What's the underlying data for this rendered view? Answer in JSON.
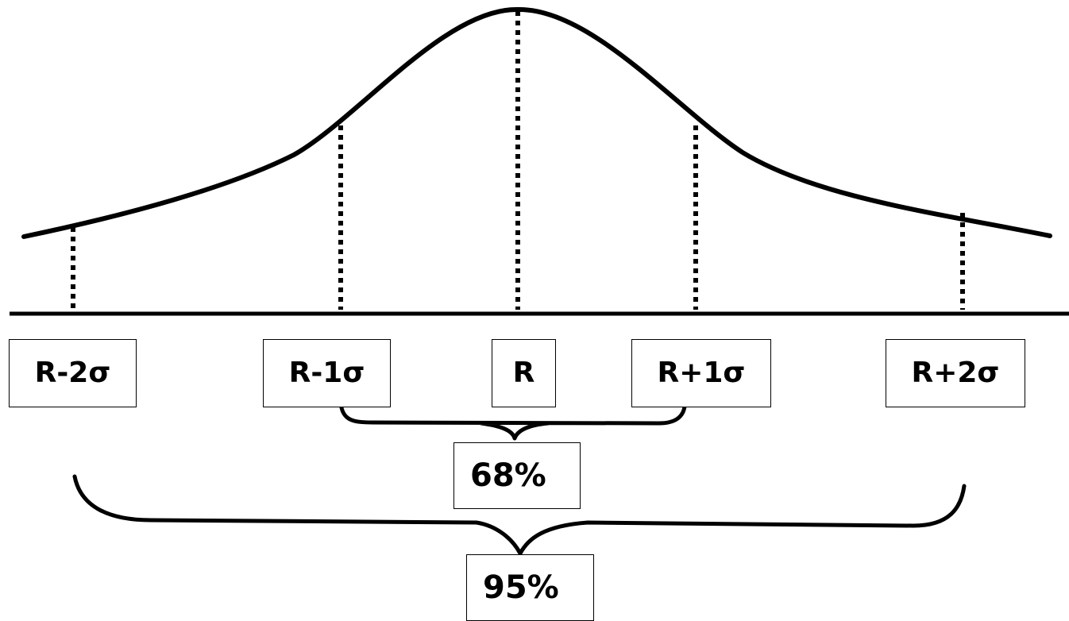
{
  "diagram": {
    "labels": {
      "minus_two_sigma": "R-2σ",
      "minus_one_sigma": "R-1σ",
      "center": "R",
      "plus_one_sigma": "R+1σ",
      "plus_two_sigma": "R+2σ"
    },
    "percentages": {
      "one_sigma_range": "68%",
      "two_sigma_range": "95%"
    }
  }
}
